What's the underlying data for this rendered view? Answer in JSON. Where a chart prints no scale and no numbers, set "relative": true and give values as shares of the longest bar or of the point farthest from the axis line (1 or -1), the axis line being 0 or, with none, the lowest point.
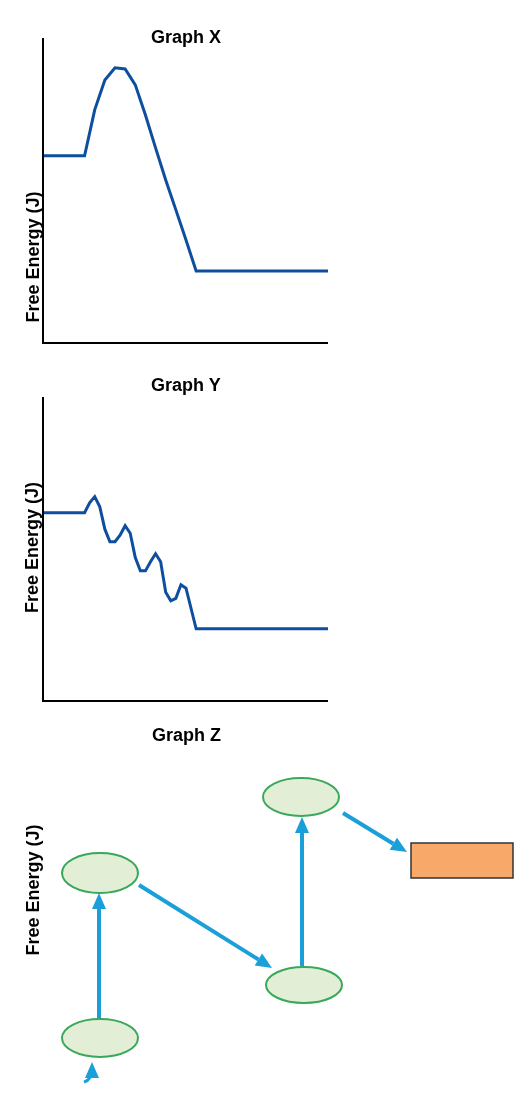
{
  "chart_data": [
    {
      "type": "line",
      "title": "Graph X",
      "ylabel": "Free Energy (J)",
      "relative": true,
      "categories": [
        null,
        null,
        null,
        null,
        null,
        null,
        null,
        null,
        null,
        null,
        null,
        null,
        null,
        null,
        null,
        null,
        null,
        null,
        null,
        null,
        null,
        null,
        null,
        null,
        null,
        null,
        null,
        null,
        null
      ],
      "series": [
        {
          "color": "#0d4f9e",
          "values": [
            0.679,
            0.679,
            0.679,
            0.679,
            0.679,
            0.847,
            0.956,
            1.0,
            0.996,
            0.938,
            0.828,
            0.708,
            0.591,
            0.482,
            0.372,
            0.259,
            0.259,
            0.259,
            0.259,
            0.259,
            0.259,
            0.259,
            0.259,
            0.259,
            0.259,
            0.259,
            0.259,
            0.259,
            0.259
          ]
        }
      ]
    },
    {
      "type": "line",
      "title": "Graph Y",
      "ylabel": "Free Energy (J)",
      "relative": true,
      "categories": [
        null,
        null,
        null,
        null,
        null,
        null,
        null,
        null,
        null,
        null,
        null,
        null,
        null,
        null,
        null,
        null,
        null,
        null,
        null,
        null,
        null,
        null,
        null,
        null,
        null,
        null,
        null,
        null,
        null,
        null,
        null,
        null,
        null,
        null,
        null,
        null,
        null,
        null,
        null,
        null,
        null,
        null,
        null,
        null,
        null,
        null,
        null,
        null,
        null,
        null,
        null,
        null,
        null,
        null,
        null,
        null,
        null
      ],
      "series": [
        {
          "color": "#0d4f9e",
          "values": [
            0.921,
            0.921,
            0.921,
            0.921,
            0.921,
            0.921,
            0.921,
            0.921,
            0.921,
            0.97,
            1.0,
            0.95,
            0.84,
            0.778,
            0.778,
            0.81,
            0.857,
            0.82,
            0.7,
            0.635,
            0.635,
            0.68,
            0.719,
            0.68,
            0.53,
            0.488,
            0.5,
            0.567,
            0.55,
            0.45,
            0.35,
            0.35,
            0.35,
            0.35,
            0.35,
            0.35,
            0.35,
            0.35,
            0.35,
            0.35,
            0.35,
            0.35,
            0.35,
            0.35,
            0.35,
            0.35,
            0.35,
            0.35,
            0.35,
            0.35,
            0.35,
            0.35,
            0.35,
            0.35,
            0.35,
            0.35,
            0.35
          ]
        }
      ]
    },
    {
      "type": "other",
      "title": "Graph Z",
      "ylabel": "Free Energy (J)"
    }
  ]
}
